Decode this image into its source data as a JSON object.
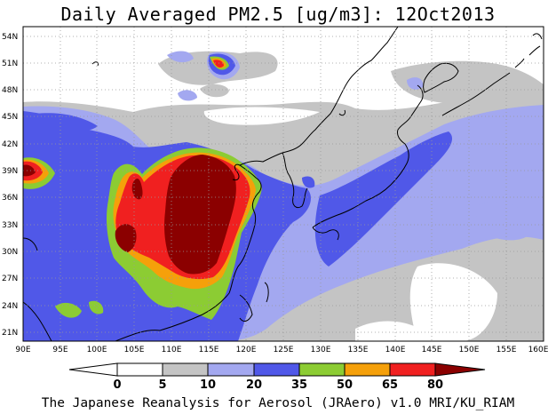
{
  "title": "Daily Averaged PM2.5 [ug/m3]: 12Oct2013",
  "footer": "The Japanese Reanalysis for Aerosol (JRAero) v1.0 MRI/KU_RIAM",
  "map": {
    "lon_range": [
      90,
      160
    ],
    "lat_range": [
      20,
      55
    ],
    "lon_labels": [
      "90E",
      "95E",
      "100E",
      "105E",
      "110E",
      "115E",
      "120E",
      "125E",
      "130E",
      "135E",
      "140E",
      "145E",
      "150E",
      "155E",
      "160E"
    ],
    "lat_labels": [
      "21N",
      "24N",
      "27N",
      "30N",
      "33N",
      "36N",
      "39N",
      "42N",
      "45N",
      "48N",
      "51N",
      "54N"
    ],
    "grid": "dotted"
  },
  "colorbar": {
    "levels": [
      "0",
      "5",
      "10",
      "20",
      "35",
      "50",
      "65",
      "80"
    ],
    "colors": [
      "#ffffff",
      "#c4c4c4",
      "#a3a8f0",
      "#5058e8",
      "#8ccc33",
      "#f5a00a",
      "#f02020",
      "#8b0000"
    ]
  }
}
